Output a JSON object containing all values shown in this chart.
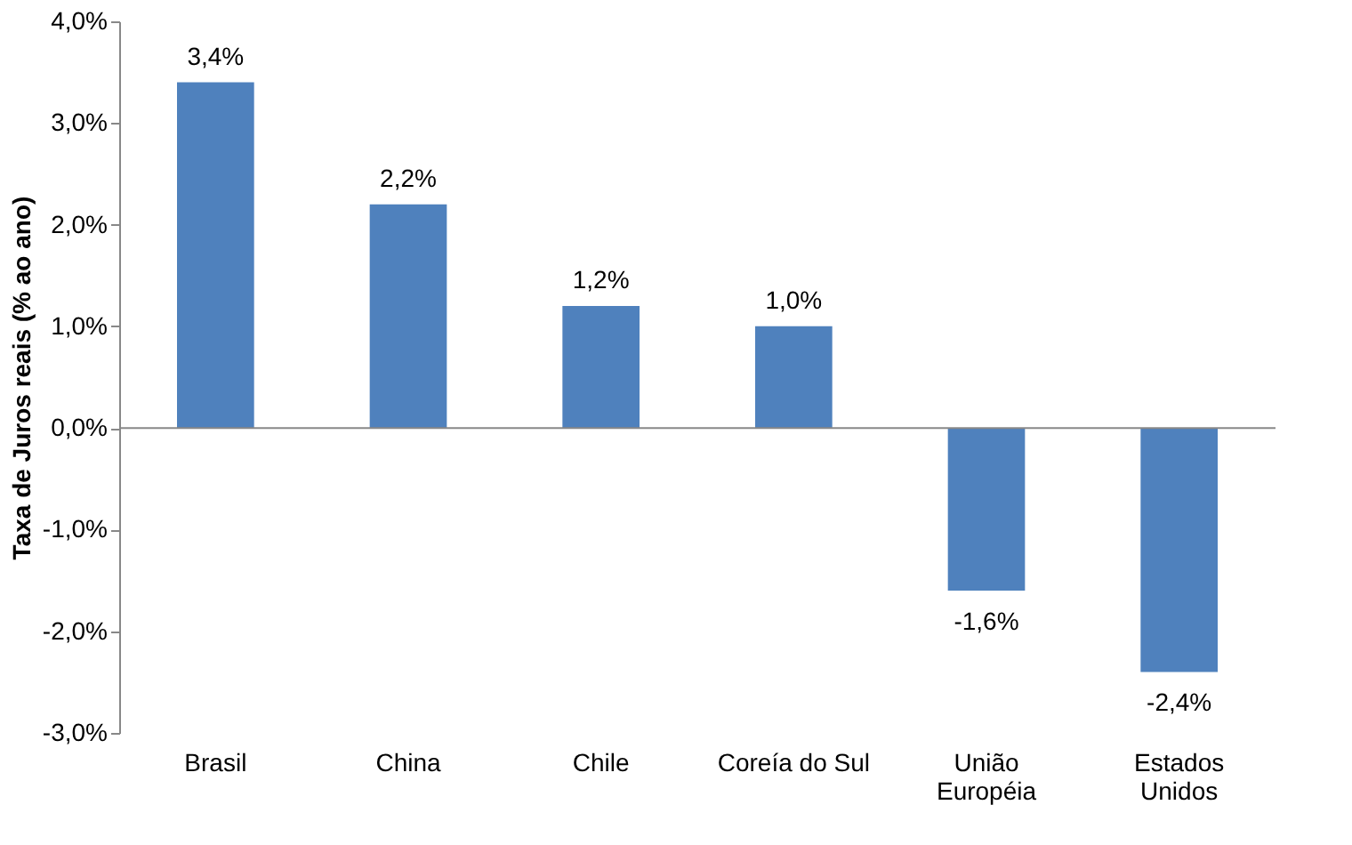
{
  "chart_data": {
    "type": "bar",
    "ylabel": "Taxa de Juros reais (% ao ano)",
    "categories": [
      "Brasil",
      "China",
      "Chile",
      "Coreía do Sul",
      "União\nEuropéia",
      "Estados\nUnidos"
    ],
    "values": [
      3.4,
      2.2,
      1.2,
      1.0,
      -1.6,
      -2.4
    ],
    "value_labels": [
      "3,4%",
      "2,2%",
      "1,2%",
      "1,0%",
      "-1,6%",
      "-2,4%"
    ],
    "color": "#4f81bd",
    "ylim": [
      -3,
      4
    ],
    "yticks": [
      {
        "value": -3,
        "label": "-3,0%"
      },
      {
        "value": -2,
        "label": "-2,0%"
      },
      {
        "value": -1,
        "label": "-1,0%"
      },
      {
        "value": 0,
        "label": "0,0%"
      },
      {
        "value": 1,
        "label": "1,0%"
      },
      {
        "value": 2,
        "label": "2,0%"
      },
      {
        "value": 3,
        "label": "3,0%"
      },
      {
        "value": 4,
        "label": "4,0%"
      }
    ],
    "ref_lines": [
      {
        "axis": "y",
        "value": 0,
        "color": "#888888"
      }
    ],
    "grid": false
  }
}
